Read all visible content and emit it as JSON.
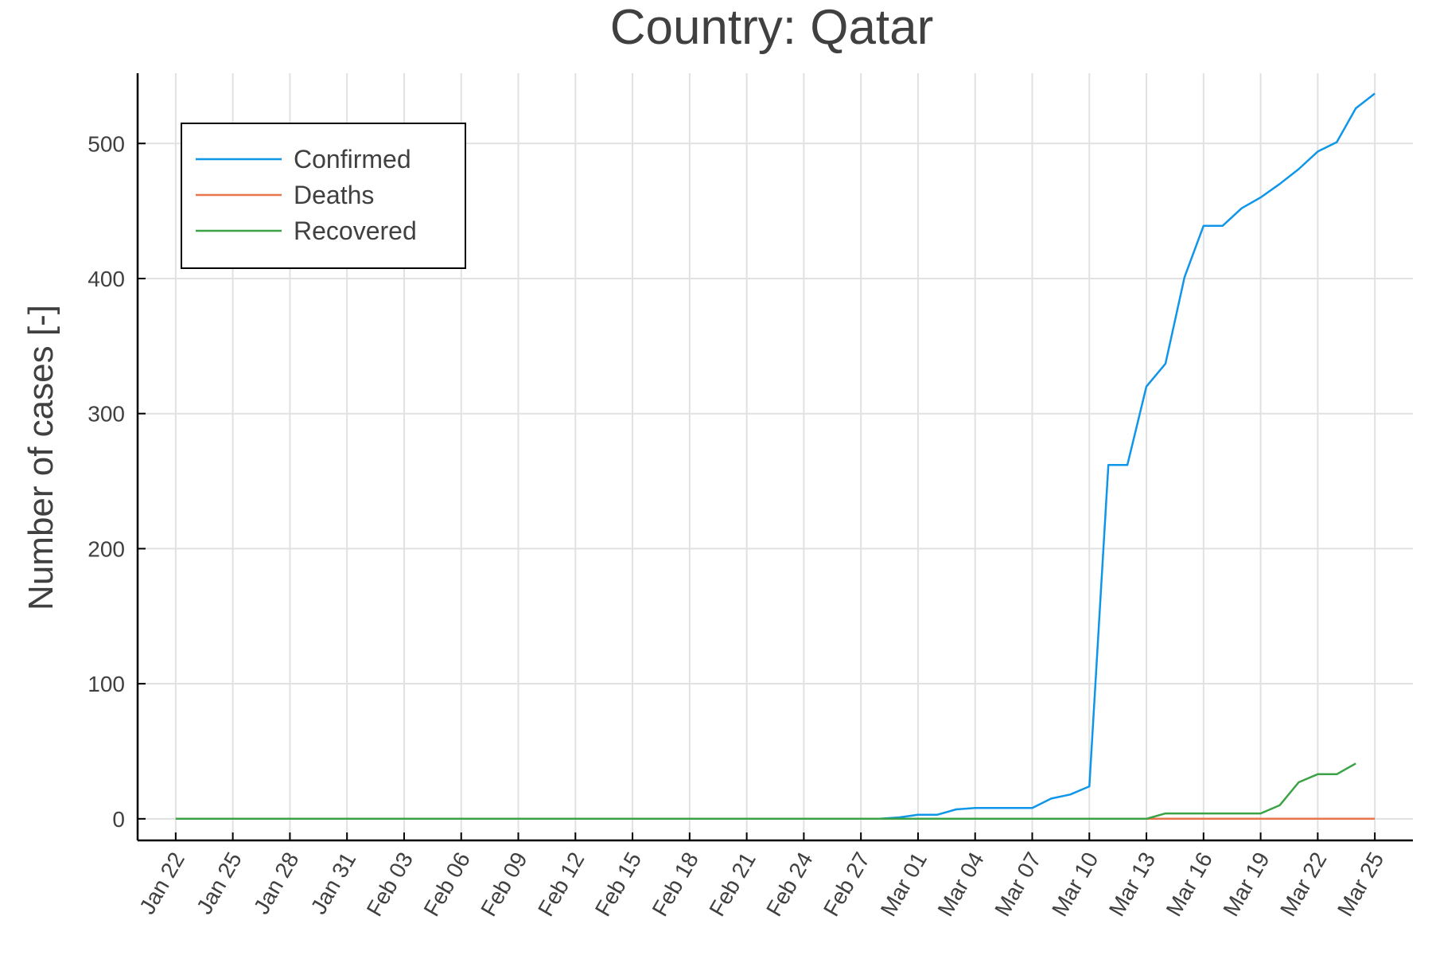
{
  "chart_data": {
    "type": "line",
    "title": "Country: Qatar",
    "xlabel": "",
    "ylabel": "Number of cases [-]",
    "x_tick_labels": [
      "Jan 22",
      "Jan 25",
      "Jan 28",
      "Jan 31",
      "Feb 03",
      "Feb 06",
      "Feb 09",
      "Feb 12",
      "Feb 15",
      "Feb 18",
      "Feb 21",
      "Feb 24",
      "Feb 27",
      "Mar 01",
      "Mar 04",
      "Mar 07",
      "Mar 10",
      "Mar 13",
      "Mar 16",
      "Mar 19",
      "Mar 22",
      "Mar 25"
    ],
    "y_tick_labels": [
      "0",
      "100",
      "200",
      "300",
      "400",
      "500"
    ],
    "y_ticks": [
      0,
      100,
      200,
      300,
      400,
      500
    ],
    "xlim": [
      "2020-01-20",
      "2020-03-27"
    ],
    "ylim": [
      -16,
      552
    ],
    "grid": true,
    "legend_position": "top-left",
    "series": [
      {
        "name": "Confirmed",
        "color": "#0f96e8",
        "points": [
          [
            "2020-01-22",
            0
          ],
          [
            "2020-02-28",
            0
          ],
          [
            "2020-02-29",
            1
          ],
          [
            "2020-03-01",
            3
          ],
          [
            "2020-03-02",
            3
          ],
          [
            "2020-03-03",
            7
          ],
          [
            "2020-03-04",
            8
          ],
          [
            "2020-03-05",
            8
          ],
          [
            "2020-03-06",
            8
          ],
          [
            "2020-03-07",
            8
          ],
          [
            "2020-03-08",
            15
          ],
          [
            "2020-03-09",
            18
          ],
          [
            "2020-03-10",
            24
          ],
          [
            "2020-03-11",
            262
          ],
          [
            "2020-03-12",
            262
          ],
          [
            "2020-03-13",
            320
          ],
          [
            "2020-03-14",
            337
          ],
          [
            "2020-03-15",
            401
          ],
          [
            "2020-03-16",
            439
          ],
          [
            "2020-03-17",
            439
          ],
          [
            "2020-03-18",
            452
          ],
          [
            "2020-03-19",
            460
          ],
          [
            "2020-03-20",
            470
          ],
          [
            "2020-03-21",
            481
          ],
          [
            "2020-03-22",
            494
          ],
          [
            "2020-03-23",
            501
          ],
          [
            "2020-03-24",
            526
          ],
          [
            "2020-03-25",
            537
          ]
        ]
      },
      {
        "name": "Deaths",
        "color": "#e8744b",
        "points": [
          [
            "2020-01-22",
            0
          ],
          [
            "2020-03-25",
            0
          ]
        ]
      },
      {
        "name": "Recovered",
        "color": "#3ba245",
        "points": [
          [
            "2020-01-22",
            0
          ],
          [
            "2020-03-13",
            0
          ],
          [
            "2020-03-14",
            4
          ],
          [
            "2020-03-15",
            4
          ],
          [
            "2020-03-16",
            4
          ],
          [
            "2020-03-17",
            4
          ],
          [
            "2020-03-18",
            4
          ],
          [
            "2020-03-19",
            4
          ],
          [
            "2020-03-20",
            10
          ],
          [
            "2020-03-21",
            27
          ],
          [
            "2020-03-22",
            33
          ],
          [
            "2020-03-23",
            33
          ],
          [
            "2020-03-24",
            41
          ]
        ]
      }
    ]
  }
}
